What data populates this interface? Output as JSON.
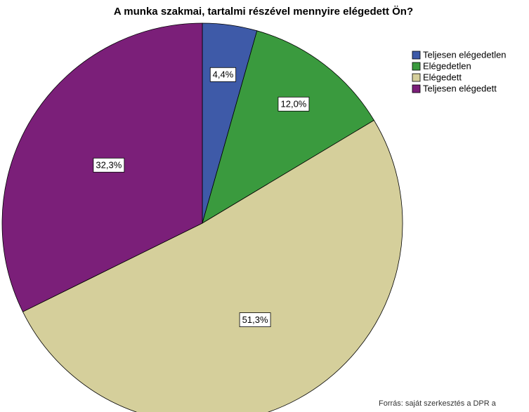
{
  "chart_data": {
    "type": "pie",
    "title": "A munka szakmai, tartalmi részével mennyire elégedett Ön?",
    "categories": [
      "Teljesen elégedetlen",
      "Elégedetlen",
      "Elégedett",
      "Teljesen elégedett"
    ],
    "values": [
      4.4,
      12.0,
      51.3,
      32.3
    ],
    "value_labels": [
      "4,4%",
      "12,0%",
      "51,3%",
      "32,3%"
    ],
    "colors": [
      "#3e5aa8",
      "#3a9a3e",
      "#d5cf9b",
      "#7b1f79"
    ],
    "legend": "upper right",
    "source": "Forrás: saját szerkesztés a DPR a"
  }
}
